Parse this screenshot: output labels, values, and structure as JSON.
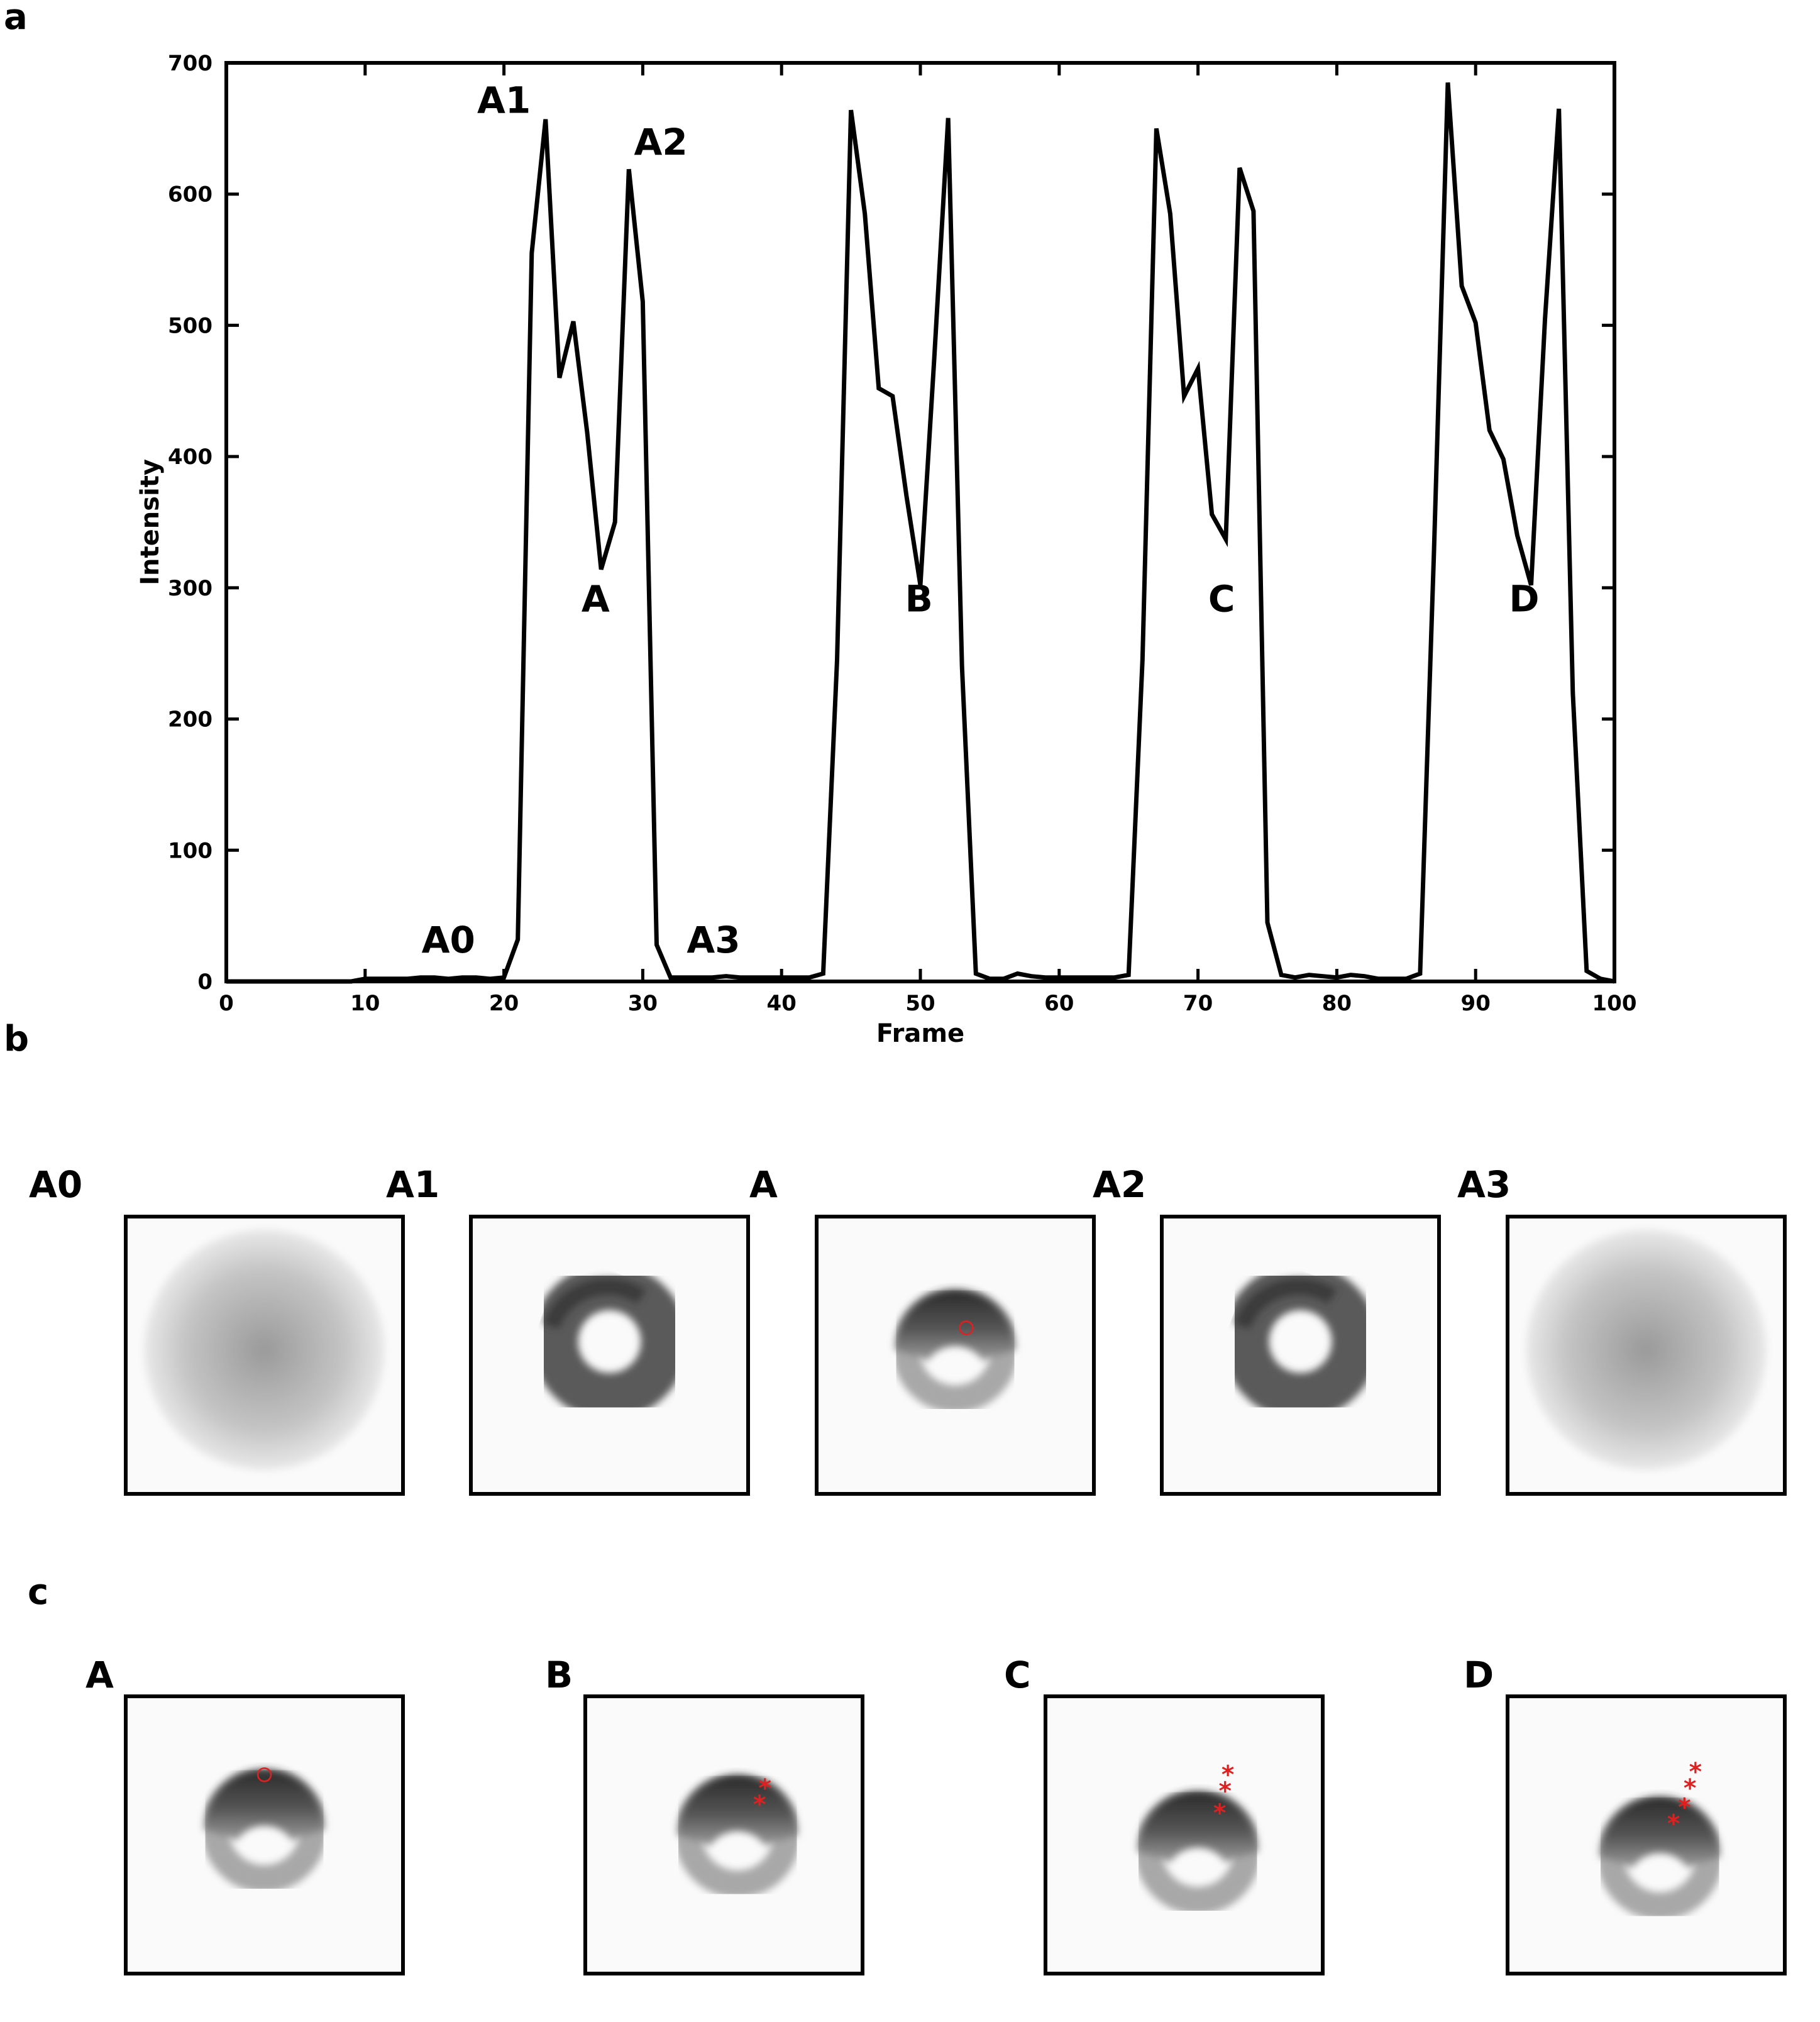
{
  "panels": {
    "a": "a",
    "b": "b",
    "c": "c"
  },
  "chart_data": {
    "type": "line",
    "xlabel": "Frame",
    "ylabel": "Intensity",
    "xlim": [
      0,
      100
    ],
    "ylim": [
      0,
      700
    ],
    "xticks": [
      0,
      10,
      20,
      30,
      40,
      50,
      60,
      70,
      80,
      90,
      100
    ],
    "yticks": [
      0,
      100,
      200,
      300,
      400,
      500,
      600,
      700
    ],
    "grid": false,
    "line_color": "#000000",
    "x": [
      0,
      1,
      2,
      3,
      4,
      5,
      6,
      7,
      8,
      9,
      10,
      11,
      12,
      13,
      14,
      15,
      16,
      17,
      18,
      19,
      20,
      21,
      22,
      23,
      24,
      25,
      26,
      27,
      28,
      29,
      30,
      31,
      32,
      33,
      34,
      35,
      36,
      37,
      38,
      39,
      40,
      41,
      42,
      43,
      44,
      45,
      46,
      47,
      48,
      49,
      50,
      51,
      52,
      53,
      54,
      55,
      56,
      57,
      58,
      59,
      60,
      61,
      62,
      63,
      64,
      65,
      66,
      67,
      68,
      69,
      70,
      71,
      72,
      73,
      74,
      75,
      76,
      77,
      78,
      79,
      80,
      81,
      82,
      83,
      84,
      85,
      86,
      87,
      88,
      89,
      90,
      91,
      92,
      93,
      94,
      95,
      96,
      97,
      98,
      99,
      100
    ],
    "y": [
      0,
      0,
      0,
      0,
      0,
      0,
      0,
      0,
      0,
      0,
      2,
      2,
      2,
      2,
      3,
      3,
      2,
      3,
      3,
      2,
      3,
      32,
      555,
      657,
      460,
      503,
      418,
      314,
      350,
      619,
      518,
      28,
      3,
      3,
      3,
      3,
      4,
      3,
      3,
      3,
      3,
      3,
      3,
      6,
      245,
      664,
      585,
      452,
      446,
      370,
      302,
      475,
      658,
      240,
      6,
      2,
      2,
      6,
      4,
      3,
      3,
      3,
      3,
      3,
      3,
      5,
      245,
      650,
      585,
      446,
      467,
      356,
      337,
      620,
      587,
      45,
      5,
      3,
      5,
      4,
      3,
      5,
      4,
      2,
      2,
      2,
      6,
      328,
      685,
      530,
      502,
      420,
      398,
      340,
      302,
      505,
      665,
      220,
      8,
      2,
      0
    ],
    "annotations": [
      {
        "text": "A0",
        "x": 16,
        "y": 22
      },
      {
        "text": "A1",
        "x": 20,
        "y": 662
      },
      {
        "text": "A2",
        "x": 31.3,
        "y": 630
      },
      {
        "text": "A",
        "x": 26.6,
        "y": 282
      },
      {
        "text": "A3",
        "x": 35.1,
        "y": 22
      },
      {
        "text": "B",
        "x": 49.9,
        "y": 282
      },
      {
        "text": "C",
        "x": 71.7,
        "y": 282
      },
      {
        "text": "D",
        "x": 93.5,
        "y": 282
      }
    ]
  },
  "row_b": {
    "labels": [
      "A0",
      "A1",
      "A",
      "A2",
      "A3"
    ],
    "images": [
      {
        "name": "A0",
        "kind": "diffuse"
      },
      {
        "name": "A1",
        "kind": "ring"
      },
      {
        "name": "A",
        "kind": "ring-bright-top",
        "marker": "circle"
      },
      {
        "name": "A2",
        "kind": "ring"
      },
      {
        "name": "A3",
        "kind": "diffuse"
      }
    ]
  },
  "row_c": {
    "labels": [
      "A",
      "B",
      "C",
      "D"
    ],
    "images": [
      {
        "name": "A",
        "kind": "ring-bright-top",
        "marker": "circle",
        "marker_count": 1
      },
      {
        "name": "B",
        "kind": "ring-bright-top",
        "marker": "asterisk",
        "marker_count": 2
      },
      {
        "name": "C",
        "kind": "ring-bright-top",
        "marker": "asterisk",
        "marker_count": 3
      },
      {
        "name": "D",
        "kind": "ring-bright-top",
        "marker": "asterisk",
        "marker_count": 4
      }
    ],
    "marker_color": "#e02020"
  }
}
